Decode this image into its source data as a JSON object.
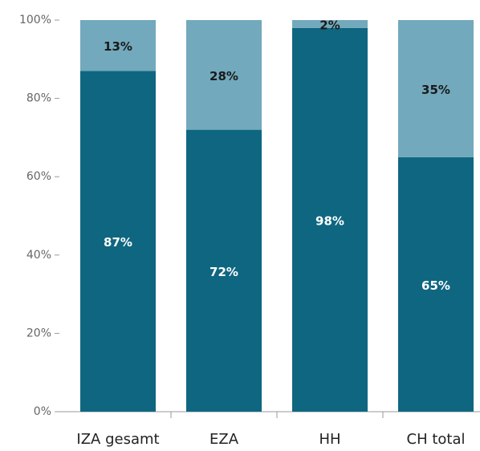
{
  "chart_data": {
    "type": "stacked_bar",
    "categories": [
      "IZA gesamt",
      "EZA",
      "HH",
      "CH total"
    ],
    "series": [
      {
        "color": "#0f6680",
        "values": [
          87,
          72,
          98,
          65
        ],
        "value_labels": [
          "87%",
          "72%",
          "98%",
          "65%"
        ]
      },
      {
        "color": "#72a9bc",
        "values": [
          13,
          28,
          2,
          35
        ],
        "value_labels": [
          "13%",
          "28%",
          "2%",
          "35%"
        ]
      }
    ],
    "ylim": [
      0,
      100
    ],
    "yticks": [
      {
        "value": 0,
        "label": "0%"
      },
      {
        "value": 20,
        "label": "20%"
      },
      {
        "value": 40,
        "label": "40%"
      },
      {
        "value": 60,
        "label": "60%"
      },
      {
        "value": 80,
        "label": "80%"
      },
      {
        "value": 100,
        "label": "100%"
      }
    ]
  }
}
